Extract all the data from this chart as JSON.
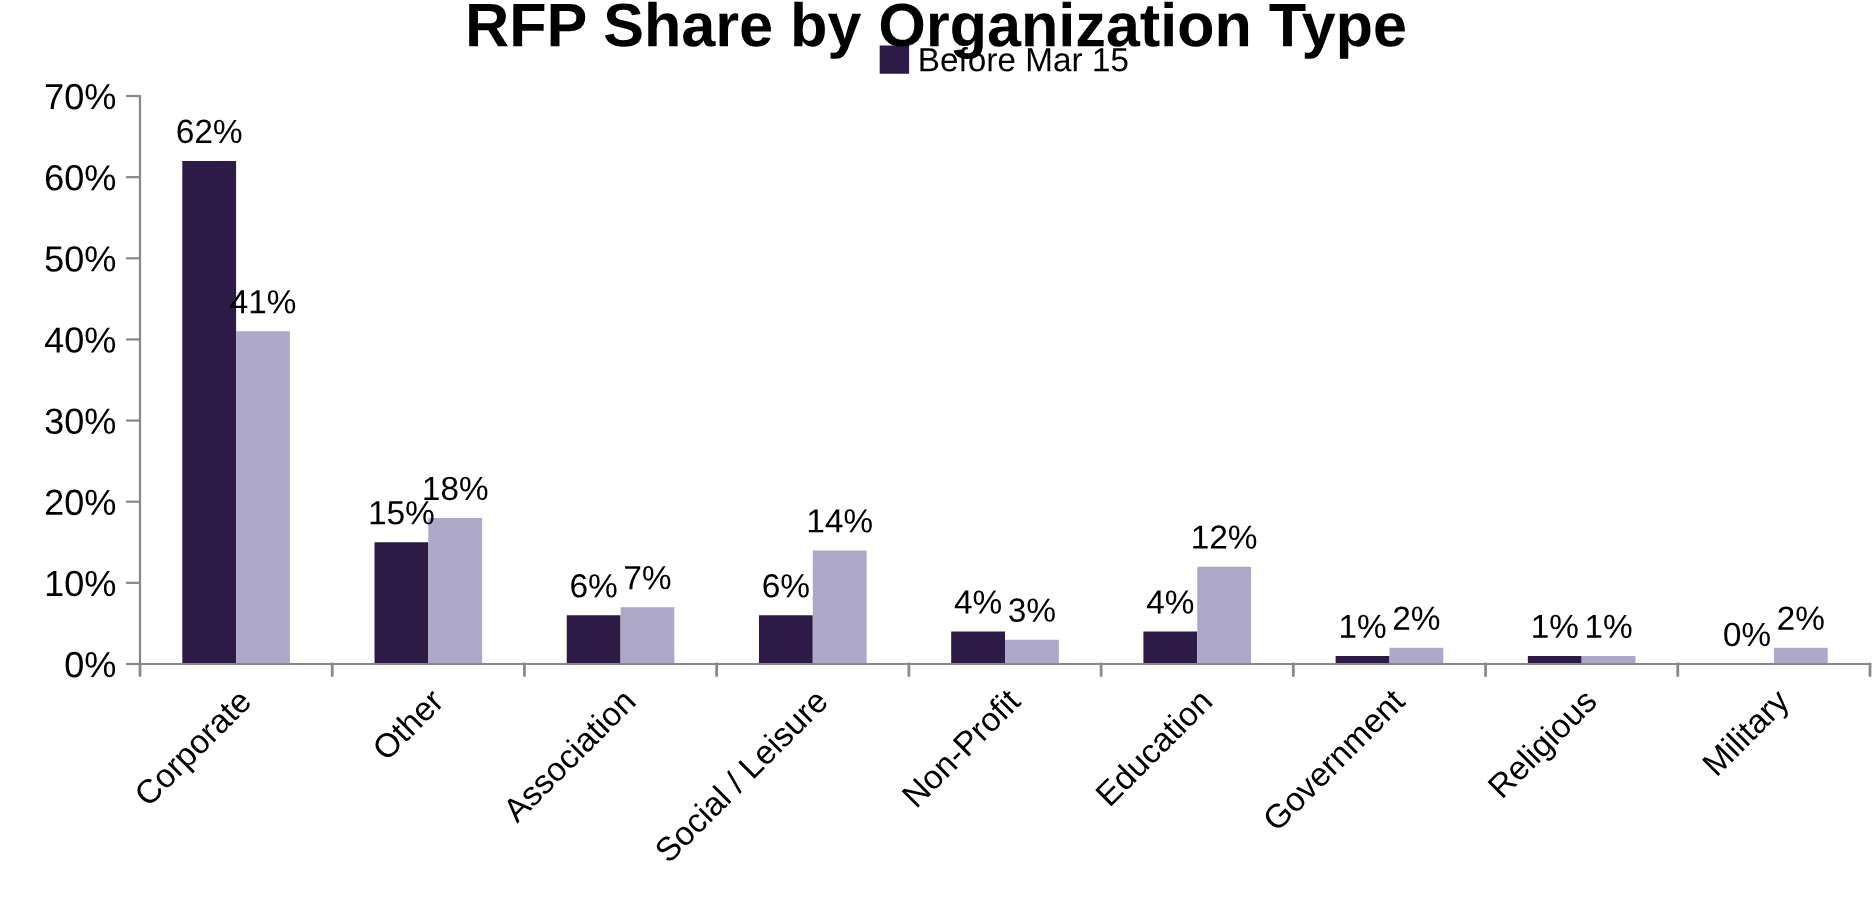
{
  "chart_data": {
    "type": "bar",
    "title": "RFP Share by Organization Type",
    "categories": [
      "Corporate",
      "Other",
      "Association",
      "Social / Leisure",
      "Non-Profit",
      "Education",
      "Government",
      "Religious",
      "Military"
    ],
    "series": [
      {
        "name": "Before Mar 15",
        "color": "#2e1a47",
        "values": [
          62,
          15,
          6,
          6,
          4,
          4,
          1,
          1,
          0
        ],
        "value_labels": [
          "62%",
          "15%",
          "6%",
          "6%",
          "4%",
          "4%",
          "1%",
          "1%",
          "0%"
        ]
      },
      {
        "color": "#aea8c8",
        "values": [
          41,
          18,
          7,
          14,
          3,
          12,
          2,
          1,
          2
        ],
        "value_labels": [
          "41%",
          "18%",
          "7%",
          "14%",
          "3%",
          "12%",
          "2%",
          "1%",
          "2%"
        ]
      }
    ],
    "ylim": [
      0,
      70
    ],
    "yticks": [
      {
        "value": 0,
        "label": "0%"
      },
      {
        "value": 10,
        "label": "10%"
      },
      {
        "value": 20,
        "label": "20%"
      },
      {
        "value": 30,
        "label": "30%"
      },
      {
        "value": 40,
        "label": "40%"
      },
      {
        "value": 50,
        "label": "50%"
      },
      {
        "value": 60,
        "label": "60%"
      },
      {
        "value": 70,
        "label": "70%"
      }
    ],
    "legend": "top",
    "grid": false
  }
}
